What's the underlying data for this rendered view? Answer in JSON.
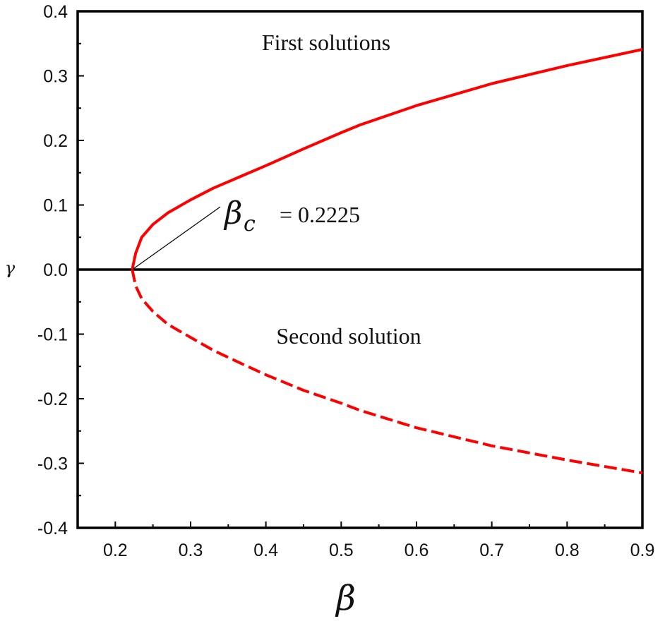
{
  "chart_data": {
    "type": "line",
    "xlabel": "β",
    "ylabel": "γ",
    "xlim": [
      0.15,
      0.9
    ],
    "ylim": [
      -0.4,
      0.4
    ],
    "x_ticks": [
      0.2,
      0.3,
      0.4,
      0.5,
      0.6,
      0.7,
      0.8,
      0.9
    ],
    "x_tick_labels": [
      "0.2",
      "0.3",
      "0.4",
      "0.5",
      "0.6",
      "0.7",
      "0.8",
      "0.9"
    ],
    "y_ticks": [
      0.4,
      0.3,
      0.2,
      0.1,
      0.0,
      -0.1,
      -0.2,
      -0.3,
      -0.4
    ],
    "y_tick_labels": [
      "0.4",
      "0.3",
      "0.2",
      "0.1",
      "0.0",
      "-0.1",
      "-0.2",
      "-0.3",
      "-0.4"
    ],
    "grid": false,
    "series": [
      {
        "name": "First solutions",
        "style": "solid",
        "color": "#ff0000",
        "x": [
          0.2225,
          0.227,
          0.235,
          0.25,
          0.27,
          0.3,
          0.33,
          0.37,
          0.4,
          0.45,
          0.5,
          0.525,
          0.6,
          0.7,
          0.8,
          0.9
        ],
        "y": [
          0.0,
          0.025,
          0.05,
          0.07,
          0.088,
          0.108,
          0.126,
          0.146,
          0.161,
          0.187,
          0.212,
          0.224,
          0.254,
          0.288,
          0.316,
          0.341
        ]
      },
      {
        "name": "Second solution",
        "style": "dashed",
        "color": "#ff0000",
        "x": [
          0.2225,
          0.227,
          0.235,
          0.25,
          0.27,
          0.3,
          0.33,
          0.37,
          0.4,
          0.45,
          0.5,
          0.525,
          0.6,
          0.7,
          0.8,
          0.9
        ],
        "y": [
          0.0,
          -0.025,
          -0.045,
          -0.065,
          -0.085,
          -0.105,
          -0.125,
          -0.147,
          -0.163,
          -0.187,
          -0.207,
          -0.218,
          -0.245,
          -0.273,
          -0.295,
          -0.315
        ]
      }
    ],
    "annotations": [
      {
        "text": "First solutions",
        "x": 0.48,
        "y": 0.34
      },
      {
        "text": "Second solution",
        "x": 0.51,
        "y": -0.115
      },
      {
        "symbol": "β",
        "subscript": "c",
        "text": "= 0.2225",
        "x": 0.36,
        "y": 0.06,
        "points_to": [
          0.2225,
          0.0
        ]
      }
    ],
    "colors": {
      "axis": "#000000",
      "curve": "#ff0000"
    }
  }
}
